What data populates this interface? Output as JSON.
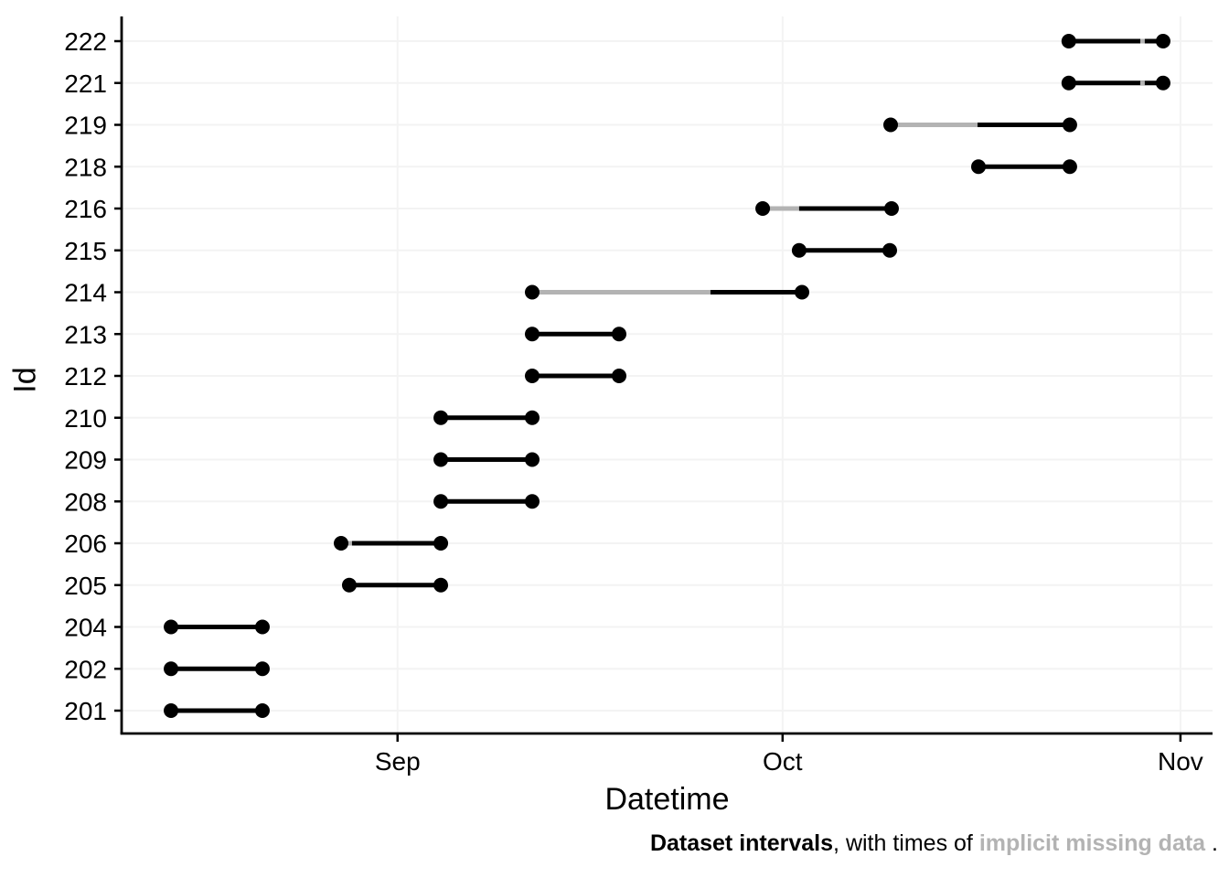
{
  "figure": {
    "x_axis_title": "Datetime",
    "y_axis_title": "Id",
    "caption": {
      "part1_bold": "Dataset intervals",
      "part2": ", with times of ",
      "part3_bold_gray": "implicit missing data",
      "part4": " ."
    }
  },
  "chart_data": {
    "type": "interval",
    "title": "",
    "xlabel": "Datetime",
    "ylabel": "Id",
    "legend": "none",
    "grid": true,
    "day_reference": "day 0 = Sep 1, day 30 = Oct 1, day 61 = Nov 1",
    "x_domain_days": [
      -21.5,
      63.5
    ],
    "x_ticks": [
      {
        "label": "Sep",
        "day": 0
      },
      {
        "label": "Oct",
        "day": 30
      },
      {
        "label": "Nov",
        "day": 61
      }
    ],
    "y_categories": [
      "222",
      "221",
      "219",
      "218",
      "216",
      "215",
      "214",
      "213",
      "212",
      "210",
      "209",
      "208",
      "206",
      "205",
      "204",
      "202",
      "201"
    ],
    "intervals": [
      {
        "id": "222",
        "start_day": 52.3,
        "end_day": 59.65,
        "approx_start": "Oct 23",
        "approx_end": "Oct 31",
        "missing": [
          [
            57.87,
            58.22
          ]
        ]
      },
      {
        "id": "221",
        "start_day": 52.3,
        "end_day": 59.65,
        "approx_start": "Oct 23",
        "approx_end": "Oct 31",
        "missing": [
          [
            57.87,
            58.22
          ]
        ]
      },
      {
        "id": "219",
        "start_day": 38.42,
        "end_day": 52.38,
        "approx_start": "Oct 9",
        "approx_end": "Oct 23",
        "missing": [
          [
            38.42,
            45.19
          ]
        ]
      },
      {
        "id": "218",
        "start_day": 45.26,
        "end_day": 52.38,
        "approx_start": "Oct 16",
        "approx_end": "Oct 23",
        "missing": []
      },
      {
        "id": "216",
        "start_day": 28.45,
        "end_day": 38.49,
        "approx_start": "Sep 29",
        "approx_end": "Oct 9",
        "missing": [
          [
            28.45,
            31.29
          ]
        ]
      },
      {
        "id": "215",
        "start_day": 31.29,
        "end_day": 38.35,
        "approx_start": "Oct 2",
        "approx_end": "Oct 9",
        "missing": []
      },
      {
        "id": "214",
        "start_day": 10.49,
        "end_day": 31.51,
        "approx_start": "Sep 11",
        "approx_end": "Oct 2",
        "missing": [
          [
            10.49,
            24.38
          ]
        ]
      },
      {
        "id": "213",
        "start_day": 10.49,
        "end_day": 17.26,
        "approx_start": "Sep 11",
        "approx_end": "Sep 18",
        "missing": []
      },
      {
        "id": "212",
        "start_day": 10.49,
        "end_day": 17.26,
        "approx_start": "Sep 11",
        "approx_end": "Sep 18",
        "missing": []
      },
      {
        "id": "210",
        "start_day": 3.37,
        "end_day": 10.49,
        "approx_start": "Sep 4",
        "approx_end": "Sep 11",
        "missing": []
      },
      {
        "id": "209",
        "start_day": 3.37,
        "end_day": 10.49,
        "approx_start": "Sep 4",
        "approx_end": "Sep 11",
        "missing": []
      },
      {
        "id": "208",
        "start_day": 3.37,
        "end_day": 10.49,
        "approx_start": "Sep 4",
        "approx_end": "Sep 11",
        "missing": []
      },
      {
        "id": "206",
        "start_day": -4.4,
        "end_day": 3.37,
        "approx_start": "Aug 27",
        "approx_end": "Sep 4",
        "missing": [
          [
            -4.15,
            -3.55
          ]
        ]
      },
      {
        "id": "205",
        "start_day": -3.76,
        "end_day": 3.37,
        "approx_start": "Aug 28",
        "approx_end": "Sep 4",
        "missing": []
      },
      {
        "id": "204",
        "start_day": -17.65,
        "end_day": -10.53,
        "approx_start": "Aug 14",
        "approx_end": "Aug 21",
        "missing": []
      },
      {
        "id": "202",
        "start_day": -17.65,
        "end_day": -10.53,
        "approx_start": "Aug 14",
        "approx_end": "Aug 21",
        "missing": []
      },
      {
        "id": "201",
        "start_day": -17.65,
        "end_day": -10.53,
        "approx_start": "Aug 14",
        "approx_end": "Aug 21",
        "missing": []
      }
    ],
    "colors": {
      "present": "#000000",
      "missing": "#b3b3b3",
      "grid": "#f3f3f3",
      "axis": "#000000",
      "caption_gray": "#b3b3b3"
    }
  }
}
